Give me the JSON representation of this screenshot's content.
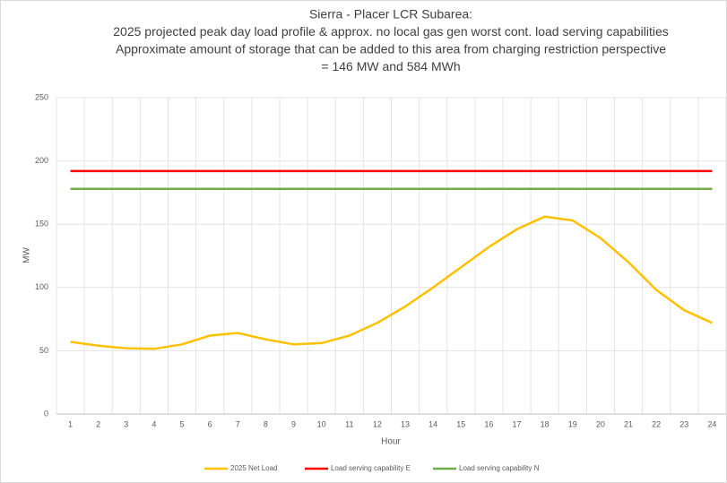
{
  "chart_data": {
    "type": "line",
    "title": [
      "Sierra - Placer LCR Subarea:",
      "2025 projected peak day load profile & approx. no local gas gen worst cont. load serving capabilities",
      "Approximate amount of storage that can be added to this area from charging restriction perspective",
      "= 146 MW and 584 MWh"
    ],
    "x_label": "Hour",
    "y_label": "MW",
    "categories": [
      "1",
      "2",
      "3",
      "4",
      "5",
      "6",
      "7",
      "8",
      "9",
      "10",
      "11",
      "12",
      "13",
      "14",
      "15",
      "16",
      "17",
      "18",
      "19",
      "20",
      "21",
      "22",
      "23",
      "24"
    ],
    "series": [
      {
        "name": "2025 Net Load",
        "color": "#ffc000",
        "values": [
          57,
          54,
          52,
          51.5,
          55,
          62,
          64,
          59,
          55,
          56,
          62,
          72,
          85,
          100,
          116,
          132,
          146,
          156,
          153,
          139,
          120,
          98,
          82,
          72
        ]
      },
      {
        "name": "Load serving capability E",
        "color": "#ff0000",
        "values": [
          192,
          192,
          192,
          192,
          192,
          192,
          192,
          192,
          192,
          192,
          192,
          192,
          192,
          192,
          192,
          192,
          192,
          192,
          192,
          192,
          192,
          192,
          192,
          192
        ]
      },
      {
        "name": "Load serving capability N",
        "color": "#70ad47",
        "values": [
          178,
          178,
          178,
          178,
          178,
          178,
          178,
          178,
          178,
          178,
          178,
          178,
          178,
          178,
          178,
          178,
          178,
          178,
          178,
          178,
          178,
          178,
          178,
          178
        ]
      }
    ],
    "ylim": [
      0,
      250
    ],
    "yticks": [
      0,
      50,
      100,
      150,
      200,
      250
    ],
    "grid": true,
    "legend": "bottom"
  }
}
